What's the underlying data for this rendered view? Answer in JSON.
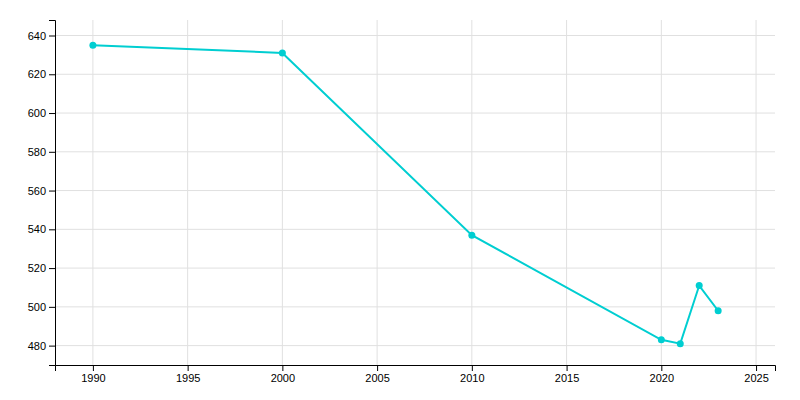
{
  "chart_data": {
    "type": "line",
    "x": [
      1990,
      2000,
      2010,
      2020,
      2021,
      2022,
      2023
    ],
    "values": [
      635,
      631,
      537,
      483,
      481,
      511,
      498
    ],
    "color": "#00CED1",
    "marker": "circle",
    "xlim": [
      1988,
      2026
    ],
    "ylim": [
      470,
      648
    ],
    "xticks": [
      1990,
      1995,
      2000,
      2005,
      2010,
      2015,
      2020,
      2025
    ],
    "yticks": [
      480,
      500,
      520,
      540,
      560,
      580,
      600,
      620,
      640
    ],
    "grid": true
  }
}
